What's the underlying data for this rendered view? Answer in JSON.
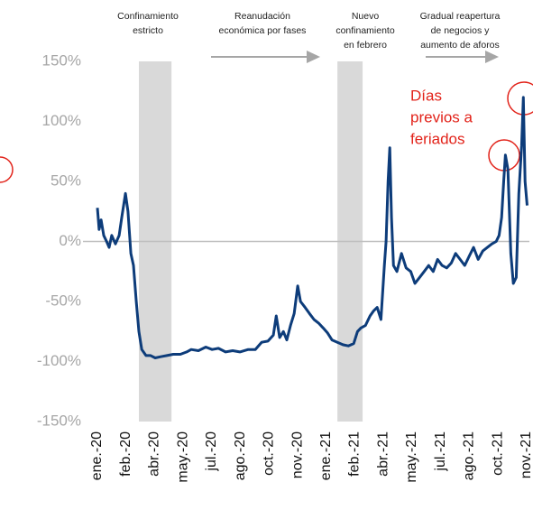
{
  "chart_data": {
    "type": "line",
    "annotations": [
      {
        "lines": [
          "Confinamiento",
          "estricto"
        ]
      },
      {
        "lines": [
          "Reanudación",
          "económica  por fases"
        ]
      },
      {
        "lines": [
          "Nuevo",
          "confinamiento",
          "en febrero"
        ]
      },
      {
        "lines": [
          "Gradual  reapertura",
          "de negocios  y",
          "aumento  de aforos"
        ]
      },
      {
        "lines": [
          "Días",
          "previos a",
          "feriados"
        ],
        "color": "#e2231a"
      }
    ],
    "shaded_regions": [
      [
        1.45,
        2.59
      ],
      [
        8.39,
        9.27
      ]
    ],
    "shade_color": "#d9d9d9",
    "xlim": [
      0,
      15.1
    ],
    "xticks": [
      {
        "value": 0,
        "label": "ene.-20"
      },
      {
        "value": 1,
        "label": "feb.-20"
      },
      {
        "value": 2,
        "label": "abr.-20"
      },
      {
        "value": 3,
        "label": "may.-20"
      },
      {
        "value": 4,
        "label": "jul.-20"
      },
      {
        "value": 5,
        "label": "ago.-20"
      },
      {
        "value": 6,
        "label": "oct.-20"
      },
      {
        "value": 7,
        "label": "nov.-20"
      },
      {
        "value": 8,
        "label": "ene.-21"
      },
      {
        "value": 9,
        "label": "feb.-21"
      },
      {
        "value": 10,
        "label": "abr.-21"
      },
      {
        "value": 11,
        "label": "may.-21"
      },
      {
        "value": 12,
        "label": "jul.-21"
      },
      {
        "value": 13,
        "label": "ago.-21"
      },
      {
        "value": 14,
        "label": "oct.-21"
      },
      {
        "value": 15,
        "label": "nov.-21"
      }
    ],
    "ylim": [
      -150,
      150
    ],
    "yticks": [
      {
        "value": 150,
        "label": "150%"
      },
      {
        "value": 100,
        "label": "100%"
      },
      {
        "value": 50,
        "label": "50%"
      },
      {
        "value": 0,
        "label": "0%"
      },
      {
        "value": -50,
        "label": "-50%"
      },
      {
        "value": -100,
        "label": "-100%"
      },
      {
        "value": -150,
        "label": "-150%"
      }
    ],
    "series": [
      {
        "color": "#0d3c7a",
        "x": [
          0,
          0.06,
          0.13,
          0.22,
          0.32,
          0.41,
          0.5,
          0.63,
          0.76,
          0.85,
          0.98,
          1.07,
          1.17,
          1.26,
          1.36,
          1.45,
          1.55,
          1.7,
          1.86,
          2.02,
          2.21,
          2.43,
          2.65,
          2.9,
          3.12,
          3.28,
          3.53,
          3.79,
          4.01,
          4.23,
          4.48,
          4.73,
          4.98,
          5.27,
          5.52,
          5.74,
          5.96,
          6.15,
          6.25,
          6.37,
          6.5,
          6.62,
          6.75,
          6.88,
          7.0,
          7.1,
          7.26,
          7.41,
          7.57,
          7.73,
          7.89,
          8.04,
          8.2,
          8.39,
          8.58,
          8.77,
          8.96,
          9.09,
          9.21,
          9.37,
          9.53,
          9.65,
          9.78,
          9.91,
          10.03,
          10.09,
          10.16,
          10.22,
          10.28,
          10.35,
          10.47,
          10.63,
          10.79,
          10.95,
          11.1,
          11.26,
          11.42,
          11.58,
          11.74,
          11.89,
          12.05,
          12.21,
          12.37,
          12.52,
          12.68,
          12.84,
          13.0,
          13.15,
          13.31,
          13.47,
          13.63,
          13.79,
          13.94,
          14.04,
          14.13,
          14.2,
          14.26,
          14.35,
          14.45,
          14.54,
          14.64,
          14.73,
          14.83,
          14.89,
          14.95,
          15.02
        ],
        "values": [
          28,
          10,
          18,
          5,
          0,
          -5,
          5,
          -2,
          5,
          20,
          40,
          25,
          -10,
          -20,
          -50,
          -75,
          -90,
          -95,
          -95,
          -97,
          -96,
          -95,
          -94,
          -94,
          -92,
          -90,
          -91,
          -88,
          -90,
          -89,
          -92,
          -91,
          -92,
          -90,
          -90,
          -84,
          -83,
          -78,
          -62,
          -80,
          -75,
          -82,
          -70,
          -60,
          -37,
          -50,
          -55,
          -60,
          -65,
          -68,
          -72,
          -76,
          -82,
          -84,
          -86,
          -87,
          -85,
          -75,
          -72,
          -70,
          -62,
          -58,
          -55,
          -65,
          -20,
          0,
          50,
          78,
          20,
          -20,
          -25,
          -10,
          -22,
          -25,
          -35,
          -30,
          -25,
          -20,
          -25,
          -15,
          -20,
          -22,
          -18,
          -10,
          -15,
          -20,
          -12,
          -5,
          -15,
          -8,
          -5,
          -2,
          0,
          5,
          20,
          50,
          72,
          60,
          -10,
          -35,
          -30,
          40,
          80,
          120,
          50,
          30
        ]
      }
    ]
  }
}
